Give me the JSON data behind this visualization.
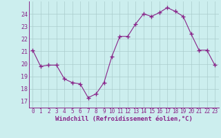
{
  "x": [
    0,
    1,
    2,
    3,
    4,
    5,
    6,
    7,
    8,
    9,
    10,
    11,
    12,
    13,
    14,
    15,
    16,
    17,
    18,
    19,
    20,
    21,
    22,
    23
  ],
  "y": [
    21.1,
    19.8,
    19.9,
    19.9,
    18.8,
    18.5,
    18.4,
    17.3,
    17.6,
    18.5,
    20.6,
    22.2,
    22.2,
    23.2,
    24.0,
    23.8,
    24.1,
    24.5,
    24.2,
    23.8,
    22.4,
    21.1,
    21.1,
    19.9
  ],
  "line_color": "#882288",
  "marker": "+",
  "markersize": 4,
  "linewidth": 0.8,
  "bg_color": "#cceeee",
  "grid_color": "#aacccc",
  "xlabel": "Windchill (Refroidissement éolien,°C)",
  "xlabel_fontsize": 6.5,
  "yticks": [
    17,
    18,
    19,
    20,
    21,
    22,
    23,
    24
  ],
  "ylim": [
    16.5,
    25.0
  ],
  "xlim": [
    -0.5,
    23.5
  ],
  "xtick_labels": [
    "0",
    "1",
    "2",
    "3",
    "4",
    "5",
    "6",
    "7",
    "8",
    "9",
    "10",
    "11",
    "12",
    "13",
    "14",
    "15",
    "16",
    "17",
    "18",
    "19",
    "20",
    "21",
    "22",
    "23"
  ],
  "tick_fontsize": 5.5,
  "ytick_fontsize": 6.0
}
